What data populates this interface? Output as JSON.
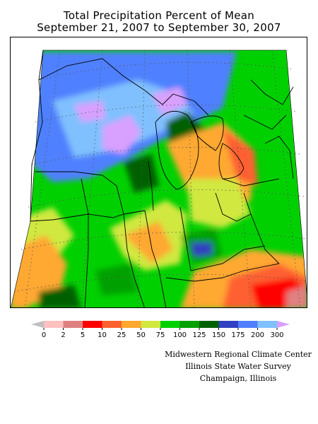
{
  "title_line1": "Total Precipitation Percent of Mean",
  "title_line2": "September 21, 2007 to September 30, 2007",
  "legend": {
    "colors": [
      "#c0c0c0",
      "#ffc0c0",
      "#e08080",
      "#ff0000",
      "#ff6030",
      "#ffa830",
      "#d0e840",
      "#00d000",
      "#00a000",
      "#006000",
      "#3040c0",
      "#5080ff",
      "#80c0ff",
      "#d8a0ff"
    ],
    "labels": [
      "0",
      "2",
      "5",
      "10",
      "25",
      "50",
      "75",
      "100",
      "125",
      "150",
      "175",
      "200",
      "300"
    ]
  },
  "credits": {
    "line1": "Midwestern Regional Climate Center",
    "line2": "Illinois State Water Survey",
    "line3": "Champaign, Illinois"
  }
}
